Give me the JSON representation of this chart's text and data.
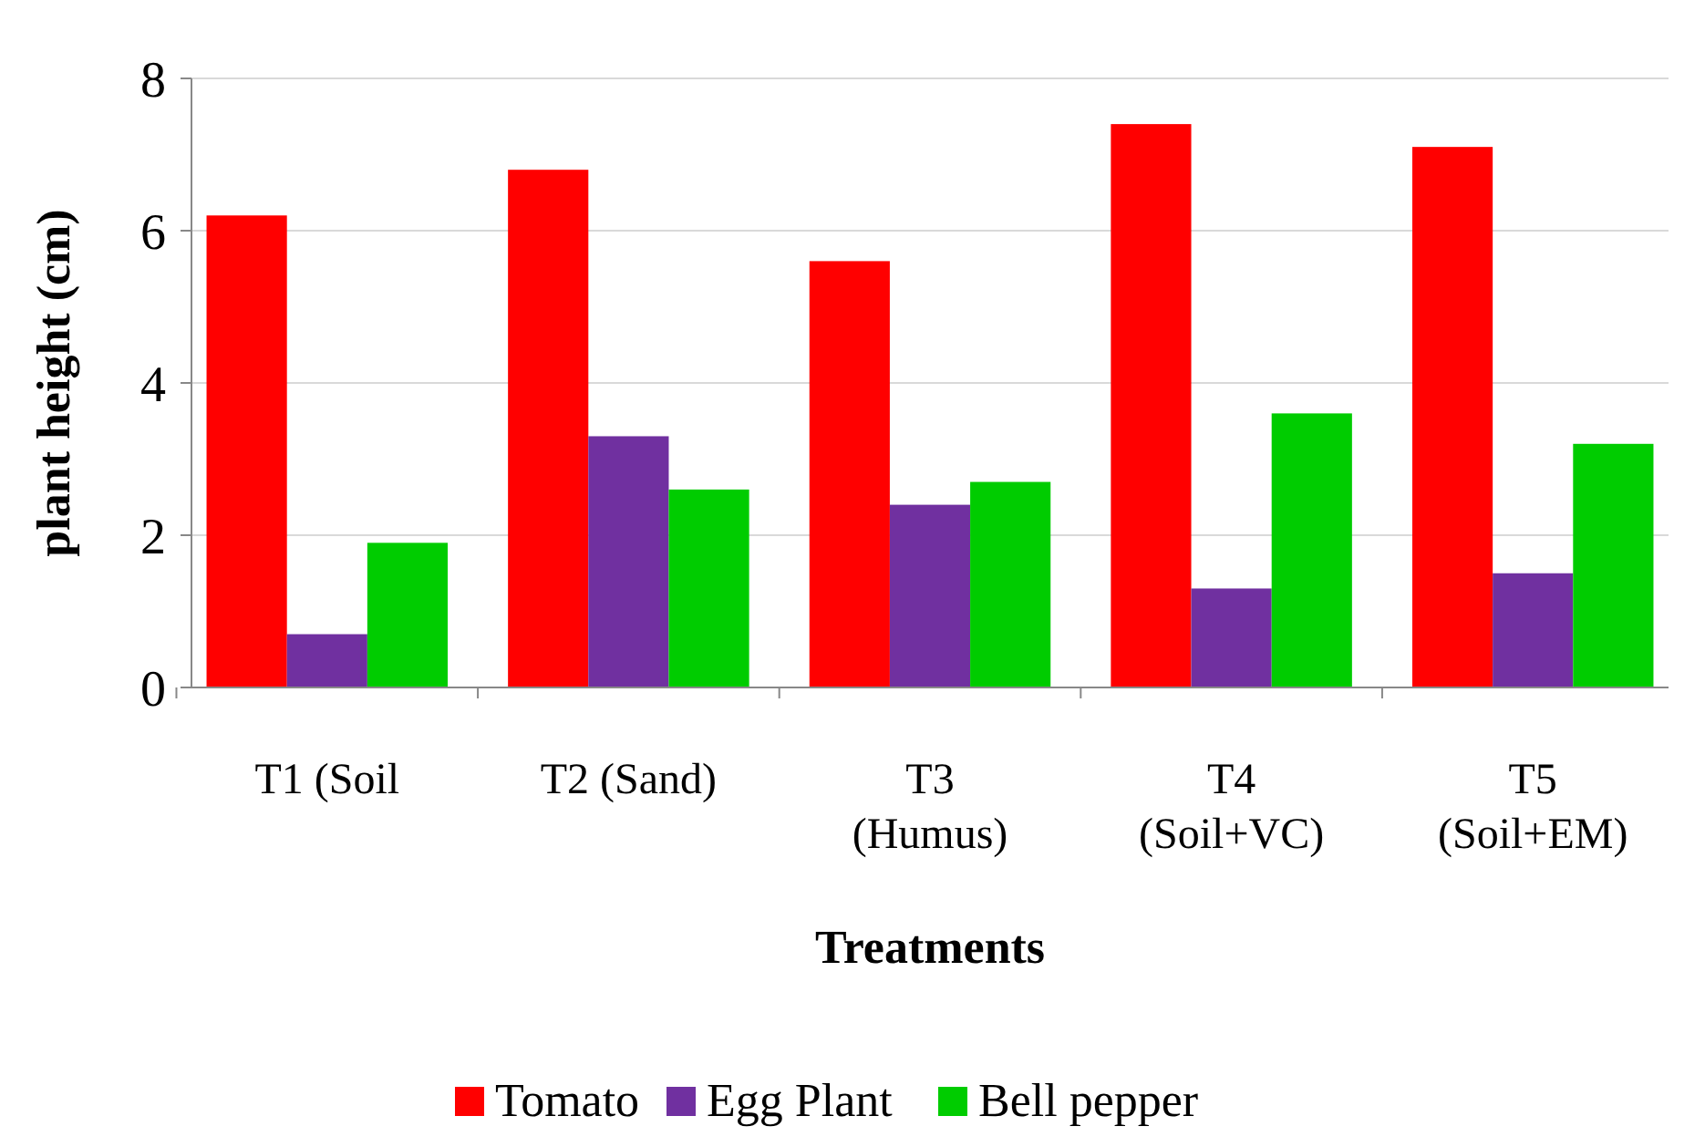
{
  "chart_data": {
    "type": "bar",
    "xlabel": "Treatments",
    "ylabel": "plant height (cm)",
    "categories": [
      "T1 (Soil",
      "T2 (Sand)",
      "T3\n(Humus)",
      "T4\n(Soil+VC)",
      "T5\n(Soil+EM)"
    ],
    "series": [
      {
        "name": "Tomato",
        "color": "#ff0000",
        "values": [
          6.2,
          6.8,
          5.6,
          7.4,
          7.1
        ]
      },
      {
        "name": "Egg Plant",
        "color": "#7030a0",
        "values": [
          0.7,
          3.3,
          2.4,
          1.3,
          1.5
        ]
      },
      {
        "name": "Bell pepper",
        "color": "#00cc00",
        "values": [
          1.9,
          2.6,
          2.7,
          3.6,
          3.2
        ]
      }
    ],
    "ylim": [
      0,
      8
    ],
    "yticks": [
      0,
      2,
      4,
      6,
      8
    ],
    "grid": "y",
    "legend": "bottom"
  }
}
